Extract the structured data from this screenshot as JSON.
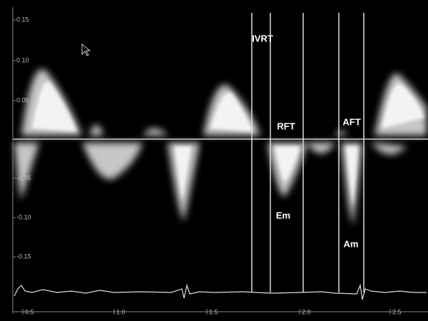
{
  "y_axis": {
    "ticks": [
      "0.15",
      "0.10",
      "0.05",
      "-0.05",
      "-0.10",
      "-0.15"
    ]
  },
  "x_axis": {
    "ticks": [
      "0.5",
      "1.0",
      "1.5",
      "2.0",
      "2.5"
    ]
  },
  "annotations": {
    "ivrt": "IVRT",
    "rft": "RFT",
    "aft": "AFT",
    "em": "Em",
    "am": "Am"
  }
}
